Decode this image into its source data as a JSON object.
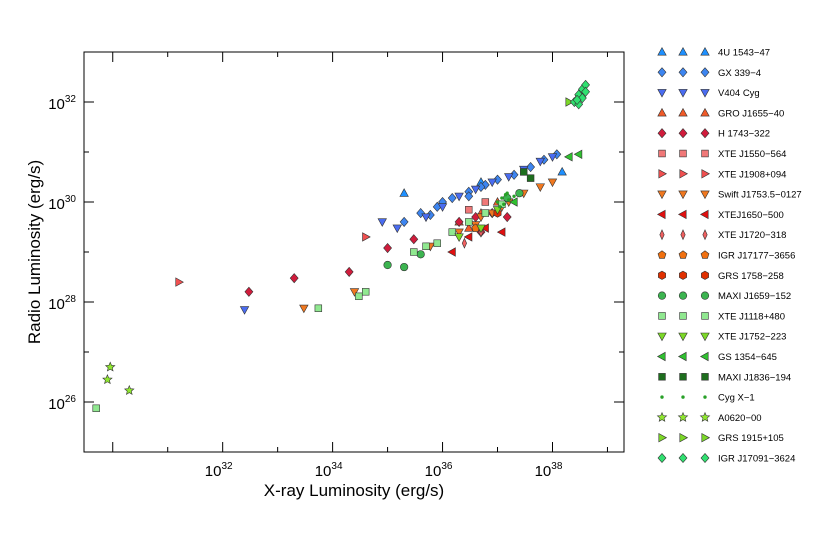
{
  "chart_data": {
    "type": "scatter",
    "xlabel": "X-ray Luminosity (erg/s)",
    "ylabel": "Radio Luminosity (erg/s)",
    "x_scale": "log",
    "y_scale": "log",
    "xlim": [
      3e+29,
      2e+39
    ],
    "ylim": [
      1e+25,
      1e+33
    ],
    "x_tick_labels": [
      {
        "value": 1e+32,
        "base": "10",
        "exp": "32"
      },
      {
        "value": 1e+34,
        "base": "10",
        "exp": "34"
      },
      {
        "value": 1e+36,
        "base": "10",
        "exp": "36"
      },
      {
        "value": 1e+38,
        "base": "10",
        "exp": "38"
      }
    ],
    "y_tick_labels": [
      {
        "value": 1e+26,
        "base": "10",
        "exp": "26"
      },
      {
        "value": 1e+28,
        "base": "10",
        "exp": "28"
      },
      {
        "value": 1e+30,
        "base": "10",
        "exp": "30"
      },
      {
        "value": 1e+32,
        "base": "10",
        "exp": "32"
      }
    ],
    "grid": false,
    "legend": "right-outside",
    "series": [
      {
        "name": "4U 1543−47",
        "marker": "triangle-up",
        "color": "#1e90ff",
        "points": [
          [
            5e+36,
            2.5e+30
          ],
          [
            1.5e+38,
            4e+30
          ],
          [
            2e+35,
            1.5e+30
          ]
        ]
      },
      {
        "name": "GX 339−4",
        "marker": "diamond",
        "color": "#3d85f0",
        "points": [
          [
            2e+35,
            4e+29
          ],
          [
            4e+35,
            6e+29
          ],
          [
            8e+35,
            8e+29
          ],
          [
            1.5e+36,
            1.2e+30
          ],
          [
            3e+36,
            1.6e+30
          ],
          [
            6e+36,
            2.2e+30
          ],
          [
            1e+37,
            2.8e+30
          ],
          [
            2e+37,
            3.5e+30
          ],
          [
            4e+37,
            5e+30
          ],
          [
            7e+37,
            7e+30
          ],
          [
            1.2e+38,
            9e+30
          ],
          [
            3e+36,
            1.3e+30
          ],
          [
            5e+36,
            2e+30
          ],
          [
            1e+36,
            1e+30
          ],
          [
            6e+35,
            5.5e+29
          ]
        ]
      },
      {
        "name": "V404 Cyg",
        "marker": "triangle-down",
        "color": "#4a6cf0",
        "points": [
          [
            2.5e+32,
            7e+27
          ],
          [
            5e+35,
            5e+29
          ],
          [
            1e+36,
            8e+29
          ],
          [
            2e+36,
            1.3e+30
          ],
          [
            4e+36,
            1.8e+30
          ],
          [
            8e+36,
            2.5e+30
          ],
          [
            1.6e+37,
            3.2e+30
          ],
          [
            3e+37,
            4.5e+30
          ],
          [
            6e+37,
            6.5e+30
          ],
          [
            1e+38,
            8e+30
          ],
          [
            8e+34,
            4e+29
          ],
          [
            1.5e+35,
            3e+29
          ]
        ]
      },
      {
        "name": "GRO J1655−40",
        "marker": "triangle-up",
        "color": "#f05a28",
        "points": [
          [
            2e+36,
            4e+29
          ],
          [
            5e+36,
            6e+29
          ],
          [
            1e+37,
            1e+30
          ],
          [
            3e+36,
            3e+29
          ]
        ]
      },
      {
        "name": "H 1743−322",
        "marker": "diamond",
        "color": "#d01c3c",
        "points": [
          [
            3e+32,
            1.6e+28
          ],
          [
            2e+33,
            3e+28
          ],
          [
            2e+34,
            4e+28
          ],
          [
            1e+35,
            1.2e+29
          ],
          [
            3e+35,
            1.8e+29
          ],
          [
            2e+36,
            4e+29
          ],
          [
            4e+36,
            5e+29
          ],
          [
            8e+36,
            6e+29
          ],
          [
            1.5e+37,
            5e+29
          ],
          [
            5e+36,
            2.5e+29
          ]
        ]
      },
      {
        "name": "XTE J1550−564",
        "marker": "square",
        "color": "#f07878",
        "points": [
          [
            3e+36,
            7e+29
          ],
          [
            6e+36,
            1e+30
          ]
        ]
      },
      {
        "name": "XTE J1908+094",
        "marker": "triangle-right",
        "color": "#f05050",
        "points": [
          [
            1.6e+31,
            2.5e+28
          ],
          [
            4e+34,
            2e+29
          ]
        ]
      },
      {
        "name": "Swift J1753.5−0127",
        "marker": "triangle-down",
        "color": "#f07820",
        "points": [
          [
            3e+33,
            7.5e+27
          ],
          [
            2.5e+34,
            1.6e+28
          ],
          [
            6e+35,
            1.3e+29
          ],
          [
            2e+36,
            2.5e+29
          ],
          [
            4e+36,
            3.5e+29
          ],
          [
            8e+36,
            6e+29
          ],
          [
            1.6e+37,
            1e+30
          ],
          [
            3e+37,
            1.5e+30
          ],
          [
            6e+37,
            2e+30
          ],
          [
            1e+38,
            2.5e+30
          ],
          [
            5e+36,
            5e+29
          ],
          [
            1.2e+37,
            8e+29
          ]
        ]
      },
      {
        "name": "XTEJ1650−500",
        "marker": "triangle-left",
        "color": "#e01010",
        "points": [
          [
            1.5e+36,
            1e+29
          ],
          [
            3e+36,
            2e+29
          ],
          [
            6e+36,
            3e+29
          ],
          [
            1.2e+37,
            2.5e+29
          ]
        ]
      },
      {
        "name": "XTE J1720−318",
        "marker": "thin-diamond",
        "color": "#f06060",
        "points": [
          [
            2.5e+36,
            1.5e+29
          ],
          [
            5e+36,
            2.5e+29
          ]
        ]
      },
      {
        "name": "IGR J17177−3656",
        "marker": "pentagon",
        "color": "#f07010",
        "points": [
          [
            4e+36,
            3e+29
          ]
        ]
      },
      {
        "name": "GRS 1758−258",
        "marker": "hexagon",
        "color": "#e03000",
        "points": [
          [
            1e+37,
            6e+29
          ]
        ]
      },
      {
        "name": "MAXI J1659−152",
        "marker": "circle",
        "color": "#3cb450",
        "points": [
          [
            1e+35,
            5.5e+28
          ],
          [
            2e+35,
            5e+28
          ],
          [
            4e+35,
            9e+28
          ],
          [
            1.5e+37,
            1.2e+30
          ],
          [
            2.5e+37,
            1.5e+30
          ]
        ]
      },
      {
        "name": "XTE J1118+480",
        "marker": "square",
        "color": "#90e890",
        "points": [
          [
            5e+29,
            7.5e+25
          ],
          [
            5.5e+33,
            7.5e+27
          ],
          [
            3e+34,
            1.3e+28
          ],
          [
            4e+34,
            1.6e+28
          ],
          [
            3e+35,
            1e+29
          ],
          [
            5e+35,
            1.3e+29
          ],
          [
            8e+35,
            1.5e+29
          ],
          [
            1.5e+36,
            2.5e+29
          ],
          [
            3e+36,
            4e+29
          ],
          [
            6e+36,
            6e+29
          ],
          [
            1.2e+37,
            9e+29
          ]
        ]
      },
      {
        "name": "XTE J1752−223",
        "marker": "triangle-down",
        "color": "#7cd828",
        "points": [
          [
            2e+36,
            2e+29
          ],
          [
            5e+36,
            3e+29
          ],
          [
            1e+37,
            7e+29
          ]
        ]
      },
      {
        "name": "GS 1354−645",
        "marker": "triangle-left",
        "color": "#30c030",
        "points": [
          [
            3e+38,
            9e+30
          ],
          [
            2e+38,
            8e+30
          ],
          [
            2e+37,
            1e+30
          ]
        ]
      },
      {
        "name": "MAXI J1836−194",
        "marker": "square",
        "color": "#1e6e1e",
        "points": [
          [
            3e+37,
            4e+30
          ],
          [
            4e+37,
            3e+30
          ]
        ]
      },
      {
        "name": "Cyg X−1",
        "marker": "dot",
        "color": "#28a028",
        "points": [
          [
            1e+37,
            1e+30
          ],
          [
            1.2e+37,
            1.2e+30
          ],
          [
            1.4e+37,
            1.4e+30
          ],
          [
            1.6e+37,
            1.1e+30
          ],
          [
            2e+37,
            1.3e+30
          ],
          [
            1.1e+37,
            8e+29
          ],
          [
            1.3e+37,
            9e+29
          ],
          [
            1.5e+37,
            1.5e+30
          ]
        ]
      },
      {
        "name": "A0620−00",
        "marker": "star",
        "color": "#90e830",
        "points": [
          [
            8e+29,
            2.8e+26
          ],
          [
            9e+29,
            5e+26
          ],
          [
            2e+30,
            1.7e+26
          ]
        ]
      },
      {
        "name": "GRS 1915+105",
        "marker": "triangle-right",
        "color": "#7cd828",
        "points": [
          [
            2e+38,
            1e+32
          ],
          [
            3e+38,
            1.2e+32
          ]
        ]
      },
      {
        "name": "IGR J17091−3624",
        "marker": "diamond",
        "color": "#30e070",
        "points": [
          [
            2.5e+38,
            1e+32
          ],
          [
            3e+38,
            1.4e+32
          ],
          [
            3.5e+38,
            1.8e+32
          ],
          [
            4e+38,
            2.2e+32
          ],
          [
            3e+38,
            9e+31
          ],
          [
            3.5e+38,
            1.2e+32
          ],
          [
            4e+38,
            1.6e+32
          ],
          [
            2.8e+38,
            1.1e+32
          ]
        ]
      }
    ]
  }
}
